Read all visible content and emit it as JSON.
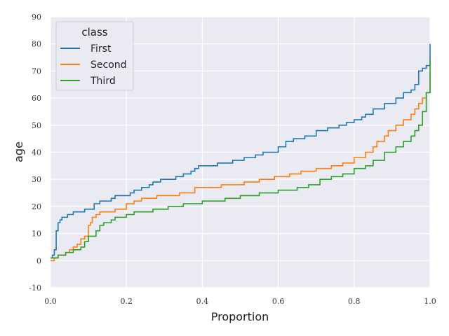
{
  "chart_data": {
    "type": "line",
    "subtype": "empirical cumulative distribution (step)",
    "xlabel": "Proportion",
    "ylabel": "age",
    "xlim": [
      0.0,
      1.0
    ],
    "ylim": [
      -10,
      90
    ],
    "xticks": [
      0.0,
      0.2,
      0.4,
      0.6,
      0.8,
      1.0
    ],
    "xtick_labels": [
      "0.0",
      "0.2",
      "0.4",
      "0.6",
      "0.8",
      "1.0"
    ],
    "yticks": [
      -10,
      0,
      10,
      20,
      30,
      40,
      50,
      60,
      70,
      80,
      90
    ],
    "ytick_labels": [
      "-10",
      "0",
      "10",
      "20",
      "30",
      "40",
      "50",
      "60",
      "70",
      "80",
      "90"
    ],
    "grid": true,
    "background": "#eaeaf2",
    "legend": {
      "title": "class",
      "placement": "top-left"
    },
    "series": [
      {
        "name": "First",
        "color": "#1f77b4",
        "x": [
          0.0,
          0.005,
          0.01,
          0.015,
          0.02,
          0.025,
          0.03,
          0.035,
          0.045,
          0.06,
          0.075,
          0.09,
          0.115,
          0.13,
          0.16,
          0.17,
          0.21,
          0.22,
          0.24,
          0.26,
          0.27,
          0.29,
          0.33,
          0.35,
          0.37,
          0.38,
          0.39,
          0.44,
          0.48,
          0.51,
          0.54,
          0.56,
          0.6,
          0.62,
          0.64,
          0.67,
          0.7,
          0.73,
          0.76,
          0.78,
          0.8,
          0.82,
          0.83,
          0.85,
          0.88,
          0.91,
          0.93,
          0.95,
          0.96,
          0.97,
          0.98,
          0.99,
          1.0
        ],
        "y": [
          1,
          2,
          4,
          11,
          14,
          15,
          16,
          16,
          17,
          18,
          18,
          19,
          21,
          22,
          23,
          24,
          25,
          26,
          27,
          28,
          29,
          30,
          31,
          32,
          33,
          34,
          35,
          36,
          37,
          38,
          39,
          40,
          42,
          44,
          45,
          46,
          48,
          49,
          50,
          51,
          52,
          53,
          54,
          56,
          58,
          60,
          62,
          63,
          65,
          70,
          71,
          72,
          80
        ]
      },
      {
        "name": "Second",
        "color": "#ff7f0e",
        "x": [
          0.0,
          0.01,
          0.02,
          0.04,
          0.05,
          0.06,
          0.07,
          0.08,
          0.09,
          0.1,
          0.105,
          0.11,
          0.12,
          0.13,
          0.17,
          0.2,
          0.22,
          0.24,
          0.28,
          0.34,
          0.38,
          0.45,
          0.51,
          0.55,
          0.59,
          0.63,
          0.66,
          0.7,
          0.74,
          0.77,
          0.8,
          0.83,
          0.85,
          0.86,
          0.88,
          0.89,
          0.91,
          0.93,
          0.95,
          0.96,
          0.97,
          0.98,
          0.99,
          1.0
        ],
        "y": [
          0,
          1,
          2,
          3,
          4,
          5,
          6,
          8,
          9,
          13,
          14,
          16,
          17,
          18,
          19,
          21,
          22,
          23,
          24,
          25,
          27,
          28,
          29,
          30,
          31,
          32,
          33,
          34,
          35,
          36,
          38,
          40,
          42,
          44,
          46,
          48,
          50,
          52,
          54,
          56,
          58,
          60,
          62,
          70
        ]
      },
      {
        "name": "Third",
        "color": "#2ca02c",
        "x": [
          0.0,
          0.02,
          0.04,
          0.06,
          0.08,
          0.09,
          0.1,
          0.12,
          0.13,
          0.14,
          0.16,
          0.17,
          0.2,
          0.22,
          0.27,
          0.31,
          0.35,
          0.4,
          0.46,
          0.5,
          0.55,
          0.6,
          0.65,
          0.68,
          0.71,
          0.74,
          0.77,
          0.8,
          0.83,
          0.85,
          0.88,
          0.91,
          0.93,
          0.95,
          0.96,
          0.97,
          0.98,
          0.99,
          1.0
        ],
        "y": [
          1,
          2,
          3,
          4,
          5,
          7,
          9,
          11,
          13,
          14,
          15,
          16,
          17,
          18,
          19,
          20,
          21,
          22,
          23,
          24,
          25,
          26,
          27,
          28,
          30,
          31,
          32,
          34,
          35,
          37,
          40,
          42,
          44,
          46,
          48,
          50,
          55,
          62,
          74
        ]
      }
    ]
  }
}
